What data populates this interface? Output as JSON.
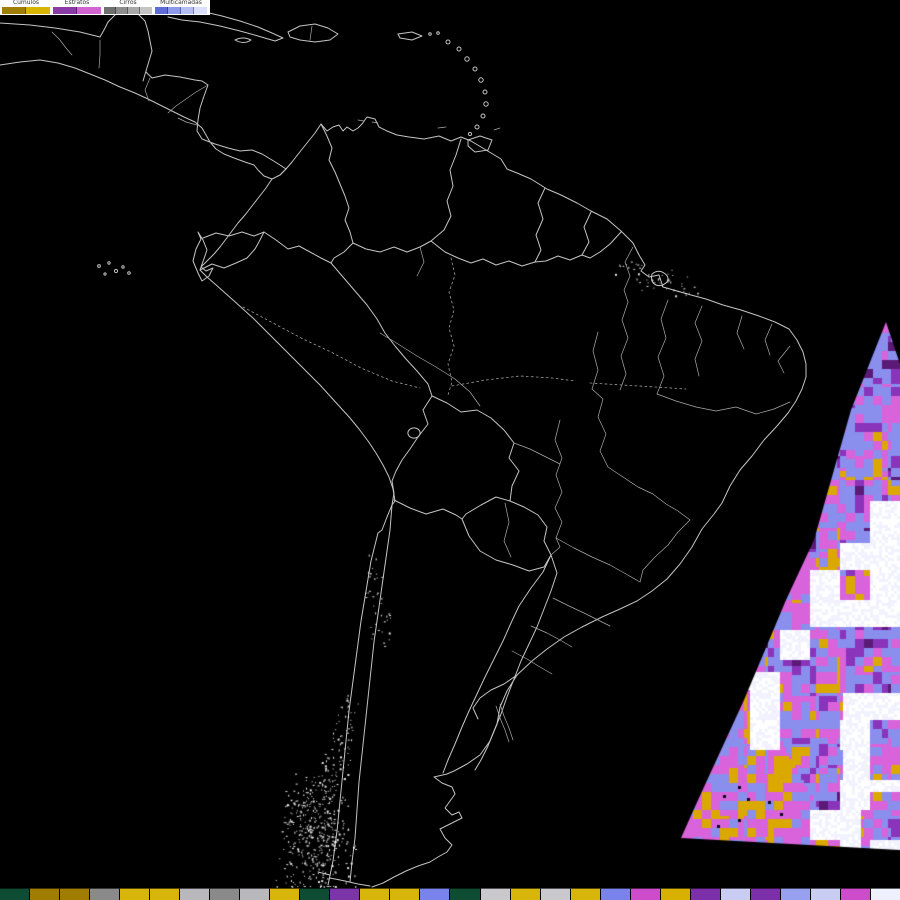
{
  "product": {
    "type": "satellite-cloud-classification-map",
    "region": "South America"
  },
  "colors": {
    "background": "#000000",
    "map_stroke": "#c4c4c4",
    "legend_bg": "#ffffff",
    "legend_label": "#333333",
    "speckle": "#e8e8e8"
  },
  "legend": {
    "groups": [
      {
        "label": "Cúmulos",
        "swatches": [
          "#a07d05",
          "#d8b500"
        ]
      },
      {
        "label": "Estratos",
        "swatches": [
          "#8b3aa8",
          "#d363d3"
        ]
      },
      {
        "label": "Cirros",
        "swatches": [
          "#6f6f6f",
          "#8d8d8d",
          "#a8a8a8",
          "#c4c4c4"
        ]
      },
      {
        "label": "Multicamadas",
        "swatches": [
          "#5d6cd8",
          "#8d9ae9",
          "#b5bef2",
          "#dbdffa"
        ]
      }
    ]
  },
  "bottom_bar": {
    "colors": [
      "#0e4d33",
      "#a07d00",
      "#a07d00",
      "#8a8a8a",
      "#d8b50a",
      "#d8b50a",
      "#b9b9bd",
      "#8a8a8a",
      "#b9b9bd",
      "#d8b50a",
      "#0e4d33",
      "#7b35a8",
      "#d8b50a",
      "#d8b50a",
      "#7a82ec",
      "#0e4d33",
      "#c9c9cd",
      "#d8b50a",
      "#c9c9cd",
      "#d8b50a",
      "#7a82ec",
      "#cc4ccc",
      "#d8b000",
      "#7b2fa8",
      "#c9cdf4",
      "#7b2fa8",
      "#98a0f0",
      "#c9cdf4",
      "#cc4ccc",
      "#eef0fb"
    ]
  },
  "swath": {
    "palette": {
      "gold": "#dba800",
      "orchid": "#d863da",
      "periwinkle": "#8a8eec",
      "purple": "#8a33bb",
      "dark_purple": "#5c1a78",
      "white": "#ffffff",
      "pale": "#f2f2ff",
      "speck": "#0a0a20"
    }
  }
}
